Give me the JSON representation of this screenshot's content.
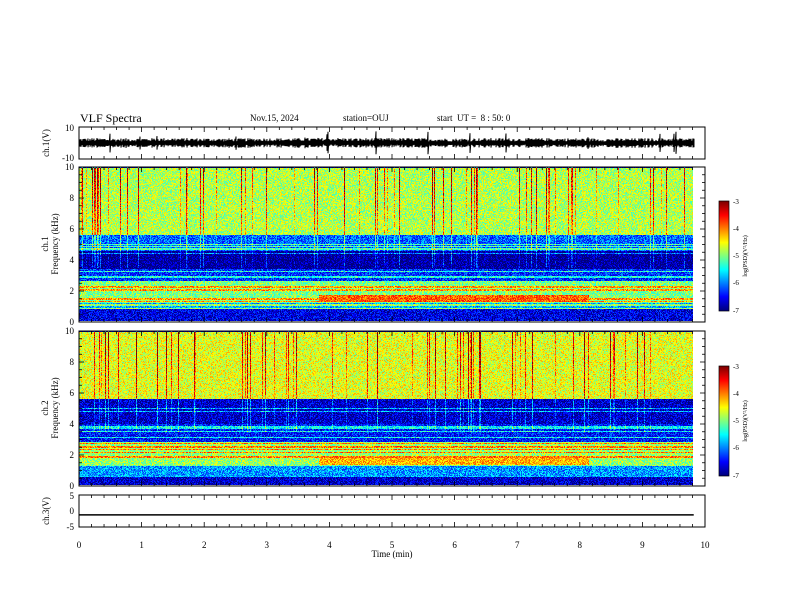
{
  "header": {
    "title": "VLF Spectra",
    "date": "Nov.15, 2024",
    "station": "station=OUJ",
    "start": "start  UT =  8 : 50: 0"
  },
  "chart_data": [
    {
      "type": "line",
      "ylabel": "ch.1(V)",
      "ylim": [
        -10,
        10
      ],
      "yticks": [
        "10",
        "-10"
      ],
      "x": [
        0,
        0.3,
        0.6,
        1.0,
        1.5,
        2.0,
        2.5,
        3.0,
        3.5,
        4.0,
        4.5,
        5.0,
        5.5,
        6.0,
        6.5,
        7.0,
        7.5,
        8.0,
        8.5,
        9.0,
        9.5,
        9.82
      ],
      "values": [
        0,
        0.1,
        -0.1,
        0,
        0.2,
        0,
        -0.1,
        0.1,
        0,
        0.3,
        0,
        0.2,
        0,
        -0.1,
        0.1,
        0,
        0.1,
        0,
        -0.1,
        0,
        0.1,
        0
      ],
      "noise_amplitude": 2
    },
    {
      "type": "heatmap",
      "ylabel_top": "ch.1",
      "ylabel": "Frequency (kHz)",
      "ylim": [
        0,
        10
      ],
      "yticks": [
        "0",
        "2",
        "4",
        "6",
        "8",
        "10"
      ],
      "colorbar": {
        "label": "log(PSD)(V²/Hz)",
        "range": [
          -7,
          -3
        ],
        "ticks": [
          "-3",
          "-4",
          "-5",
          "-6",
          "-7"
        ]
      },
      "bands": [
        {
          "from": 0,
          "to": 0.8,
          "level": -6.6
        },
        {
          "from": 0.8,
          "to": 1.2,
          "level": -5.8
        },
        {
          "from": 1.2,
          "to": 2.6,
          "level": -5.0
        },
        {
          "from": 2.6,
          "to": 3.4,
          "level": -6.3
        },
        {
          "from": 3.4,
          "to": 4.6,
          "level": -6.9
        },
        {
          "from": 4.6,
          "to": 5.6,
          "level": -6.1
        },
        {
          "from": 5.6,
          "to": 10,
          "level": -4.8
        }
      ],
      "enhancement": {
        "t_start": 3.9,
        "t_end": 8.3,
        "freq_kHz": 1.5,
        "level": -3.9
      }
    },
    {
      "type": "heatmap",
      "ylabel_top": "ch.2",
      "ylabel": "Frequency (kHz)",
      "ylim": [
        0,
        10
      ],
      "yticks": [
        "0",
        "2",
        "4",
        "6",
        "8",
        "10"
      ],
      "colorbar": {
        "label": "log(PSD)(V²/Hz)",
        "range": [
          -7,
          -3
        ],
        "ticks": [
          "-3",
          "-4",
          "-5",
          "-6",
          "-7"
        ]
      },
      "bands": [
        {
          "from": 0,
          "to": 0.6,
          "level": -6.7
        },
        {
          "from": 0.6,
          "to": 1.3,
          "level": -5.9
        },
        {
          "from": 1.3,
          "to": 2.8,
          "level": -4.9
        },
        {
          "from": 2.8,
          "to": 4.0,
          "level": -6.4
        },
        {
          "from": 4.0,
          "to": 5.6,
          "level": -6.7
        },
        {
          "from": 5.6,
          "to": 10,
          "level": -4.6
        }
      ],
      "enhancement": {
        "t_start": 3.9,
        "t_end": 8.3,
        "freq_kHz": 1.6,
        "level": -4.2
      }
    },
    {
      "type": "line",
      "ylabel": "ch.3(V)",
      "ylim": [
        -5,
        5
      ],
      "yticks": [
        "5",
        "0",
        "-5"
      ],
      "x": [
        0,
        9.82
      ],
      "values": [
        -1.2,
        -1.2
      ]
    }
  ],
  "xaxis": {
    "label": "Time  (min)",
    "xlim": [
      0,
      10
    ],
    "ticks": [
      "0",
      "1",
      "2",
      "3",
      "4",
      "5",
      "6",
      "7",
      "8",
      "9",
      "10"
    ],
    "data_end": 9.82
  },
  "colors": {
    "frame": "#000000",
    "trace": "#000000"
  }
}
